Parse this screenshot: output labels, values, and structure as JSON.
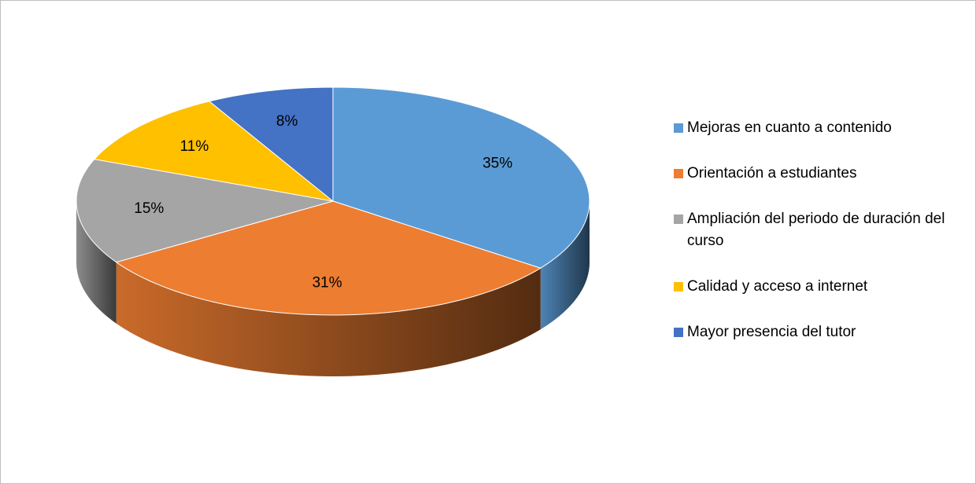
{
  "chart_data": {
    "type": "pie",
    "three_d": true,
    "categories": [
      "Mejoras en cuanto a contenido",
      "Orientación a estudiantes",
      "Ampliación del periodo de duración del curso",
      "Calidad y acceso a internet",
      "Mayor presencia del tutor"
    ],
    "values": [
      35,
      31,
      15,
      11,
      8
    ],
    "value_labels": [
      "35%",
      "31%",
      "15%",
      "11%",
      "8%"
    ],
    "colors": [
      "#5b9bd5",
      "#ed7d31",
      "#a5a5a5",
      "#ffc000",
      "#4472c4"
    ],
    "legend": "right"
  }
}
